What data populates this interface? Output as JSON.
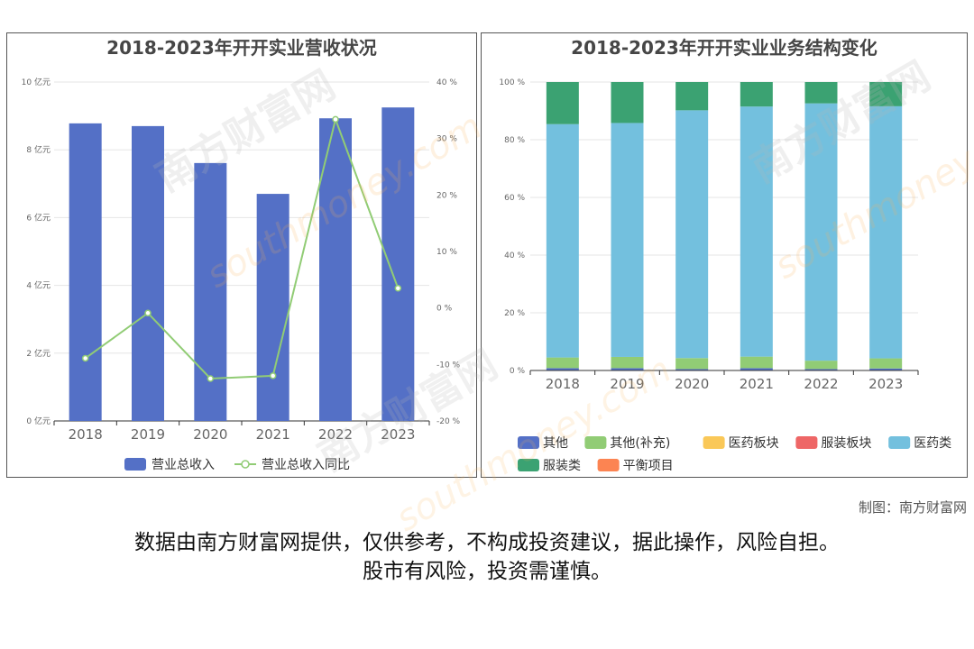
{
  "charts": {
    "revenue": {
      "title": "2018-2023年开开实业营收状况"
    },
    "structure": {
      "title": "2018-2023年开开实业业务结构变化"
    }
  },
  "chart_data": [
    {
      "type": "bar",
      "title": "2018-2023年开开实业营收状况",
      "categories": [
        "2018",
        "2019",
        "2020",
        "2021",
        "2022",
        "2023"
      ],
      "series": [
        {
          "name": "营业总收入",
          "type": "bar",
          "axis": "left",
          "color": "#5470c6",
          "values": [
            8.78,
            8.7,
            7.61,
            6.7,
            8.93,
            9.25
          ]
        },
        {
          "name": "营业总收入同比",
          "type": "line",
          "axis": "right",
          "color": "#91cc75",
          "values": [
            -8.9,
            -0.9,
            -12.5,
            -12.0,
            33.4,
            3.5
          ]
        }
      ],
      "y_left": {
        "min": 0,
        "max": 10,
        "step": 2,
        "tick_suffix": " 亿元"
      },
      "y_right": {
        "min": -20,
        "max": 40,
        "step": 10,
        "tick_suffix": " %"
      },
      "grid": true,
      "legend": "bottom-center"
    },
    {
      "type": "bar",
      "stacked": true,
      "title": "2018-2023年开开实业业务结构变化",
      "categories": [
        "2018",
        "2019",
        "2020",
        "2021",
        "2022",
        "2023"
      ],
      "series": [
        {
          "name": "其他",
          "color": "#5470c6",
          "values": [
            0.8,
            0.8,
            0.5,
            0.8,
            0.5,
            0.7
          ]
        },
        {
          "name": "其他(补充)",
          "color": "#91cc75",
          "values": [
            3.7,
            3.9,
            3.8,
            4.0,
            2.9,
            3.5
          ]
        },
        {
          "name": "医药板块",
          "color": "#fac858",
          "values": [
            0,
            0,
            0,
            0,
            0,
            0
          ]
        },
        {
          "name": "服装板块",
          "color": "#ee6666",
          "values": [
            0,
            0,
            0,
            0,
            0,
            0
          ]
        },
        {
          "name": "医药类",
          "color": "#73c0de",
          "values": [
            80.9,
            81.1,
            85.9,
            86.7,
            89.2,
            87.4
          ]
        },
        {
          "name": "服装类",
          "color": "#3ba272",
          "values": [
            14.6,
            14.2,
            9.8,
            8.5,
            7.4,
            8.4
          ]
        },
        {
          "name": "平衡项目",
          "color": "#fc8452",
          "values": [
            0,
            0,
            0,
            0,
            0,
            0
          ]
        }
      ],
      "y": {
        "min": 0,
        "max": 100,
        "step": 20,
        "tick_suffix": " %"
      },
      "grid": true,
      "legend": "bottom-center"
    }
  ],
  "footer": {
    "credit": "制图：南方财富网",
    "disclaimer_line1": "数据由南方财富网提供，仅供参考，不构成投资建议，据此操作，风险自担。",
    "disclaimer_line2": "股市有风险，投资需谨慎。"
  },
  "watermark": {
    "brand": "南方财富网",
    "site": "southmoney.com"
  }
}
